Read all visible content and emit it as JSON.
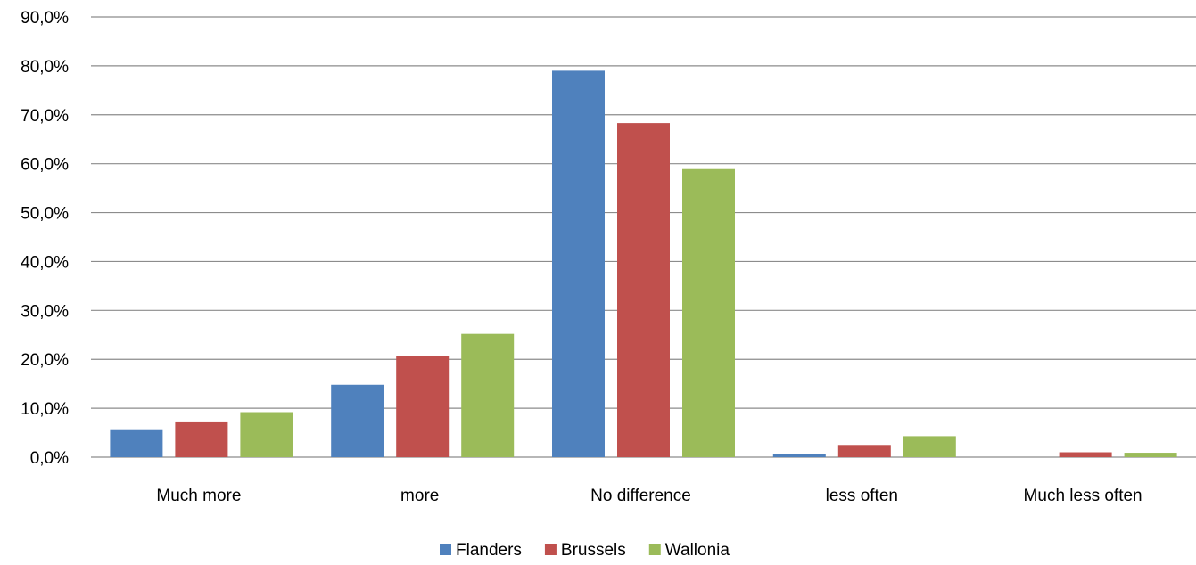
{
  "chart_data": {
    "type": "bar",
    "title": "",
    "xlabel": "",
    "ylabel": "",
    "categories": [
      "Much more",
      "more",
      "No difference",
      "less often",
      "Much less often"
    ],
    "series": [
      {
        "name": "Flanders",
        "color": "#4F81BD",
        "values": [
          5.7,
          14.8,
          79.0,
          0.6,
          0.0
        ]
      },
      {
        "name": "Brussels",
        "color": "#C0504D",
        "values": [
          7.3,
          20.7,
          68.3,
          2.5,
          1.0
        ]
      },
      {
        "name": "Wallonia",
        "color": "#9BBB59",
        "values": [
          9.2,
          25.2,
          58.9,
          4.3,
          0.9
        ]
      }
    ],
    "ylim": [
      0,
      90
    ],
    "yticks": [
      "0,0%",
      "10,0%",
      "20,0%",
      "30,0%",
      "40,0%",
      "50,0%",
      "60,0%",
      "70,0%",
      "80,0%",
      "90,0%"
    ],
    "grid": true,
    "legend_position": "bottom"
  }
}
